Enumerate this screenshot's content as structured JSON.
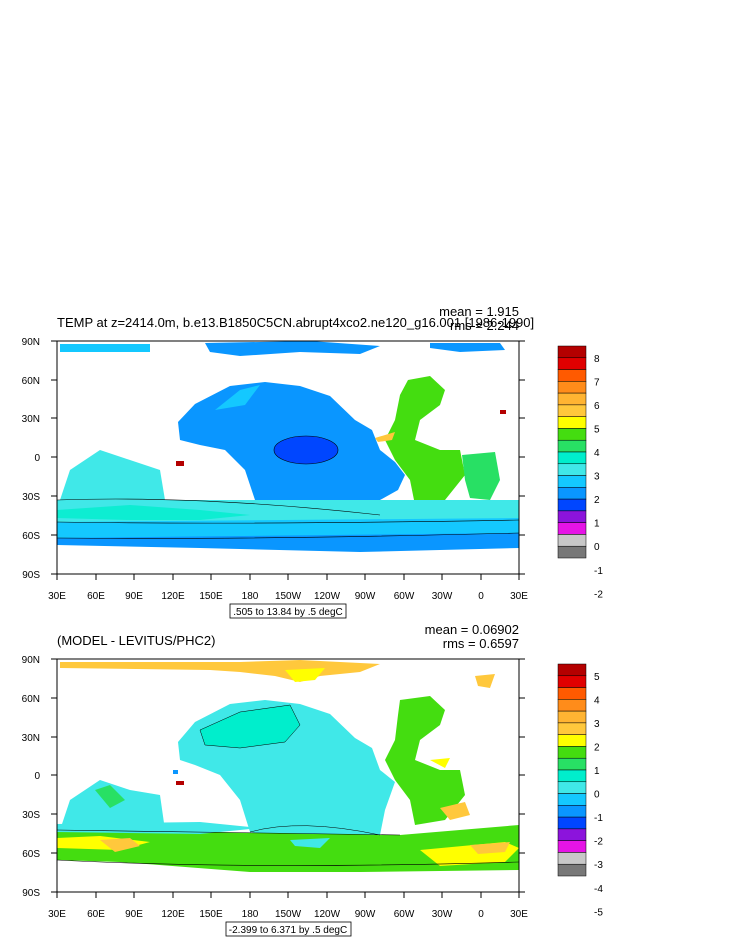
{
  "panels": [
    {
      "title": "TEMP at z=2414.0m, b.e13.B1850C5CN.abrupt4xco2.ne120_g16.001 [1986-1990]",
      "stats": {
        "mean": "mean = 1.915",
        "rms": "rms = 2.244"
      },
      "contour_info": ".505 to 13.84 by .5 degC",
      "lat_labels": [
        "90N",
        "60N",
        "30N",
        "0",
        "30S",
        "60S",
        "90S"
      ],
      "lon_labels": [
        "30E",
        "60E",
        "90E",
        "120E",
        "150E",
        "180",
        "150W",
        "120W",
        "90W",
        "60W",
        "30W",
        "0",
        "30E"
      ],
      "colorbar": {
        "labels": [
          "8",
          "7",
          "6",
          "5",
          "4",
          "3",
          "2",
          "1",
          "0",
          "-1",
          "-2"
        ],
        "colors": [
          "#b40000",
          "#e00000",
          "#ff5a00",
          "#ff8c1a",
          "#ffb432",
          "#ffc83c",
          "#ffff00",
          "#44dd10",
          "#28e064",
          "#00eecc",
          "#40e8e8",
          "#14c8ff",
          "#0a96ff",
          "#0046ff",
          "#8c14dc",
          "#e614e6",
          "#c8c8c8",
          "#787878"
        ]
      }
    },
    {
      "title": "(MODEL - LEVITUS/PHC2)",
      "stats": {
        "mean": "mean = 0.06902",
        "rms": "rms = 0.6597"
      },
      "contour_info": "-2.399 to 6.371 by .5 degC",
      "lat_labels": [
        "90N",
        "60N",
        "30N",
        "0",
        "30S",
        "60S",
        "90S"
      ],
      "lon_labels": [
        "30E",
        "60E",
        "90E",
        "120E",
        "150E",
        "180",
        "150W",
        "120W",
        "90W",
        "60W",
        "30W",
        "0",
        "30E"
      ],
      "colorbar": {
        "labels": [
          "5",
          "4",
          "3",
          "2",
          "1",
          "0",
          "-1",
          "-2",
          "-3",
          "-4",
          "-5"
        ],
        "colors": [
          "#b40000",
          "#e00000",
          "#ff5a00",
          "#ff8c1a",
          "#ffb432",
          "#ffc83c",
          "#ffff00",
          "#44dd10",
          "#28e064",
          "#00eecc",
          "#40e8e8",
          "#14c8ff",
          "#0a96ff",
          "#0046ff",
          "#8c14dc",
          "#e614e6",
          "#c8c8c8",
          "#787878"
        ]
      }
    }
  ]
}
